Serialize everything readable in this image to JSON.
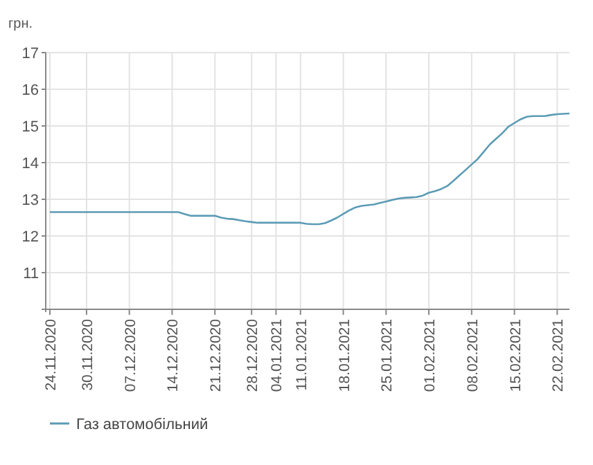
{
  "chart_data": {
    "type": "line",
    "ylabel": "грн.",
    "categories": [
      "24.11.2020",
      null,
      null,
      null,
      null,
      null,
      "30.11.2020",
      null,
      null,
      null,
      null,
      null,
      null,
      "07.12.2020",
      null,
      null,
      null,
      null,
      null,
      null,
      "14.12.2020",
      null,
      null,
      null,
      null,
      null,
      null,
      "21.12.2020",
      null,
      null,
      null,
      null,
      null,
      "28.12.2020",
      null,
      null,
      null,
      "04.01.2021",
      null,
      null,
      null,
      "11.01.2021",
      null,
      null,
      null,
      null,
      null,
      null,
      "18.01.2021",
      null,
      null,
      null,
      null,
      null,
      null,
      "25.01.2021",
      null,
      null,
      null,
      null,
      null,
      null,
      "01.02.2021",
      null,
      null,
      null,
      null,
      null,
      null,
      "08.02.2021",
      null,
      null,
      null,
      null,
      null,
      null,
      "15.02.2021",
      null,
      null,
      null,
      null,
      null,
      null,
      "22.02.2021",
      null,
      null
    ],
    "series": [
      {
        "name": "Газ автомобільний",
        "color": "#5b9bb5",
        "values": [
          12.65,
          12.65,
          12.65,
          12.65,
          12.65,
          12.65,
          12.65,
          12.65,
          12.65,
          12.65,
          12.65,
          12.65,
          12.65,
          12.65,
          12.65,
          12.65,
          12.65,
          12.65,
          12.65,
          12.65,
          12.65,
          12.65,
          12.6,
          12.55,
          12.55,
          12.55,
          12.55,
          12.55,
          12.5,
          12.47,
          12.46,
          12.43,
          12.4,
          12.38,
          12.36,
          12.36,
          12.36,
          12.36,
          12.36,
          12.36,
          12.36,
          12.36,
          12.33,
          12.32,
          12.32,
          12.35,
          12.42,
          12.5,
          12.6,
          12.7,
          12.78,
          12.82,
          12.84,
          12.86,
          12.9,
          12.94,
          12.98,
          13.02,
          13.04,
          13.05,
          13.06,
          13.1,
          13.18,
          13.22,
          13.28,
          13.36,
          13.5,
          13.65,
          13.8,
          13.95,
          14.1,
          14.3,
          14.5,
          14.65,
          14.8,
          14.98,
          15.08,
          15.18,
          15.25,
          15.27,
          15.27,
          15.27,
          15.3,
          15.32,
          15.33,
          15.34
        ]
      }
    ],
    "ylim": [
      10,
      17
    ],
    "yticks": [
      {
        "value": 10,
        "label": null
      },
      11,
      12,
      13,
      14,
      15,
      16,
      17
    ],
    "grid": true,
    "legend": "bottom left",
    "marker": "none",
    "line_style": "solid"
  }
}
